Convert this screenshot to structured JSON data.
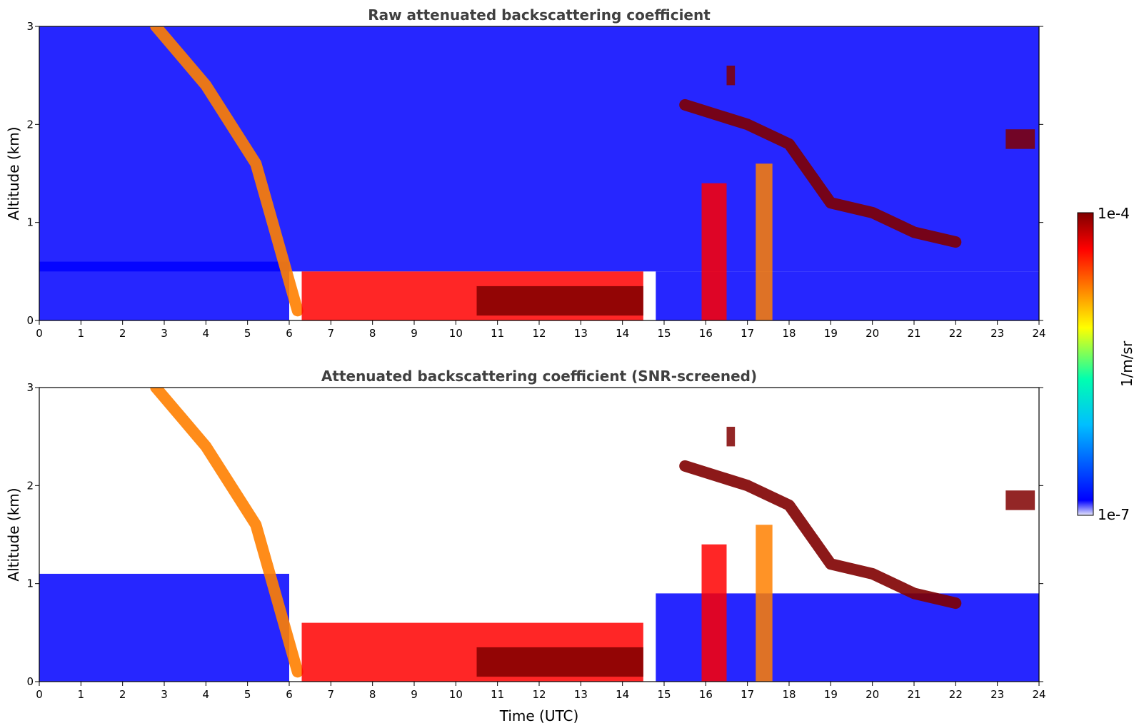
{
  "chart_data": [
    {
      "type": "heatmap",
      "title": "Raw attenuated backscattering coefficient",
      "xlabel": "",
      "ylabel": "Altitude (km)",
      "xlim": [
        0,
        24
      ],
      "ylim": [
        0,
        3
      ],
      "x_ticks": [
        "0",
        "1",
        "2",
        "3",
        "4",
        "5",
        "6",
        "7",
        "8",
        "9",
        "10",
        "11",
        "12",
        "13",
        "14",
        "15",
        "16",
        "17",
        "18",
        "19",
        "20",
        "21",
        "22",
        "23",
        "24"
      ],
      "y_ticks": [
        "0",
        "1",
        "2",
        "3"
      ],
      "features": [
        {
          "feature": "background noise",
          "x_range": [
            0,
            24
          ],
          "y_range": [
            0.5,
            3
          ],
          "level": 0.18
        },
        {
          "feature": "boundary layer",
          "x_range": [
            0,
            6
          ],
          "y_range": [
            0,
            0.6
          ],
          "level": 0.2
        },
        {
          "feature": "boundary layer",
          "x_range": [
            14.8,
            24
          ],
          "y_range": [
            0,
            0.5
          ],
          "level": 0.2
        },
        {
          "feature": "precipitation / aerosol layer",
          "points": [
            [
              2.8,
              3.0
            ],
            [
              4.0,
              2.4
            ],
            [
              5.2,
              1.6
            ],
            [
              6.2,
              0.1
            ]
          ],
          "level": 0.75
        },
        {
          "feature": "low cloud layer",
          "x_range": [
            6.3,
            14.5
          ],
          "y_range": [
            0,
            0.5
          ],
          "level": 0.9
        },
        {
          "feature": "dense low cloud",
          "x_range": [
            10.5,
            14.5
          ],
          "y_range": [
            0.05,
            0.35
          ],
          "level": 0.98
        },
        {
          "feature": "convective cell",
          "x_range": [
            15.9,
            16.5
          ],
          "y_range": [
            0,
            1.4
          ],
          "level": 0.85
        },
        {
          "feature": "convective cell",
          "x_range": [
            17.2,
            17.6
          ],
          "y_range": [
            0,
            1.6
          ],
          "level": 0.7
        },
        {
          "feature": "elevated cloud",
          "points": [
            [
              15.5,
              2.2
            ],
            [
              17.0,
              2.0
            ],
            [
              18.0,
              1.8
            ],
            [
              19.0,
              1.2
            ],
            [
              20.0,
              1.1
            ],
            [
              21.0,
              0.9
            ],
            [
              22.0,
              0.8
            ]
          ],
          "level": 0.97
        },
        {
          "feature": "isolated cloud",
          "x_range": [
            16.5,
            16.7
          ],
          "y_range": [
            2.4,
            2.6
          ],
          "level": 0.98
        },
        {
          "feature": "isolated cloud",
          "x_range": [
            23.2,
            23.9
          ],
          "y_range": [
            1.75,
            1.95
          ],
          "level": 0.95
        }
      ]
    },
    {
      "type": "heatmap",
      "title": "Attenuated backscattering coefficient (SNR-screened)",
      "xlabel": "Time (UTC)",
      "ylabel": "Altitude (km)",
      "xlim": [
        0,
        24
      ],
      "ylim": [
        0,
        3
      ],
      "x_ticks": [
        "0",
        "1",
        "2",
        "3",
        "4",
        "5",
        "6",
        "7",
        "8",
        "9",
        "10",
        "11",
        "12",
        "13",
        "14",
        "15",
        "16",
        "17",
        "18",
        "19",
        "20",
        "21",
        "22",
        "23",
        "24"
      ],
      "y_ticks": [
        "0",
        "1",
        "2",
        "3"
      ],
      "features": [
        {
          "feature": "boundary layer",
          "x_range": [
            0,
            6
          ],
          "y_range": [
            0,
            1.1
          ],
          "level": 0.18
        },
        {
          "feature": "boundary layer",
          "x_range": [
            14.8,
            24
          ],
          "y_range": [
            0,
            0.9
          ],
          "level": 0.2
        },
        {
          "feature": "precipitation / aerosol layer",
          "points": [
            [
              2.8,
              3.0
            ],
            [
              4.0,
              2.4
            ],
            [
              5.2,
              1.6
            ],
            [
              6.2,
              0.1
            ]
          ],
          "level": 0.75
        },
        {
          "feature": "low cloud layer",
          "x_range": [
            6.3,
            14.5
          ],
          "y_range": [
            0,
            0.6
          ],
          "level": 0.85
        },
        {
          "feature": "saturated cloud base",
          "x_range": [
            10.5,
            14.5
          ],
          "y_range": [
            0.05,
            0.35
          ],
          "level": 1.0
        },
        {
          "feature": "convective cell",
          "x_range": [
            15.9,
            16.5
          ],
          "y_range": [
            0,
            1.4
          ],
          "level": 0.85
        },
        {
          "feature": "convective cell",
          "x_range": [
            17.2,
            17.6
          ],
          "y_range": [
            0,
            1.6
          ],
          "level": 0.7
        },
        {
          "feature": "elevated cloud",
          "points": [
            [
              15.5,
              2.2
            ],
            [
              17.0,
              2.0
            ],
            [
              18.0,
              1.8
            ],
            [
              19.0,
              1.2
            ],
            [
              20.0,
              1.1
            ],
            [
              21.0,
              0.9
            ],
            [
              22.0,
              0.8
            ]
          ],
          "level": 1.0
        },
        {
          "feature": "isolated cloud",
          "x_range": [
            16.5,
            16.7
          ],
          "y_range": [
            2.4,
            2.6
          ],
          "level": 1.0
        },
        {
          "feature": "isolated cloud",
          "x_range": [
            23.2,
            23.9
          ],
          "y_range": [
            1.75,
            1.95
          ],
          "level": 1.0
        }
      ]
    }
  ],
  "colorbar": {
    "label": "1/m/sr",
    "max_label": "1e-4",
    "min_label": "1e-7",
    "scale": "log",
    "colormap": "jet",
    "colors": [
      "#e6e6fa",
      "#0000ff",
      "#00bfff",
      "#00ffb0",
      "#ffff00",
      "#ff8000",
      "#ff0000",
      "#800000"
    ]
  }
}
